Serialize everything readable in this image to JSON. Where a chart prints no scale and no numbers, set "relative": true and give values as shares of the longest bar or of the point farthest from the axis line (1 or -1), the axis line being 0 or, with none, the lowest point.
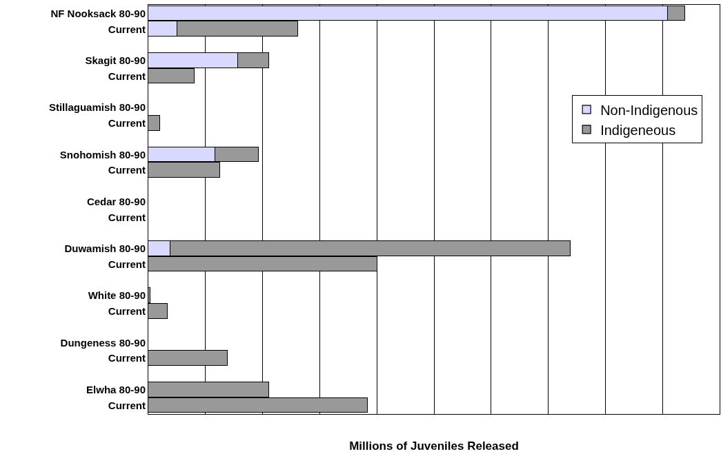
{
  "chart_data": {
    "type": "bar",
    "orientation": "horizontal",
    "stacked": true,
    "relative": true,
    "xlabel": "Millions of Juveniles Released",
    "categories": [
      "NF Nooksack 80-90",
      "Current",
      "Skagit 80-90",
      "Current",
      "Stillaguamish 80-90",
      "Current",
      "Snohomish 80-90",
      "Current",
      "Cedar 80-90",
      "Current",
      "Duwamish 80-90",
      "Current",
      "White 80-90",
      "Current",
      "Dungeness 80-90",
      "Current",
      "Elwha 80-90",
      "Current"
    ],
    "series": [
      {
        "name": "Non-Indigenous",
        "color": "#d9d9ff",
        "values": [
          0.967,
          0.054,
          0.167,
          null,
          null,
          null,
          0.124,
          null,
          null,
          null,
          0.041,
          null,
          null,
          null,
          null,
          null,
          null,
          null
        ]
      },
      {
        "name": "Indigeneous",
        "color": "#999999",
        "values": [
          0.033,
          0.225,
          0.058,
          0.086,
          null,
          0.022,
          0.081,
          0.133,
          null,
          null,
          0.745,
          0.427,
          0.004,
          0.036,
          null,
          0.148,
          0.225,
          0.408
        ]
      }
    ],
    "grid": "x",
    "legend": "right"
  }
}
